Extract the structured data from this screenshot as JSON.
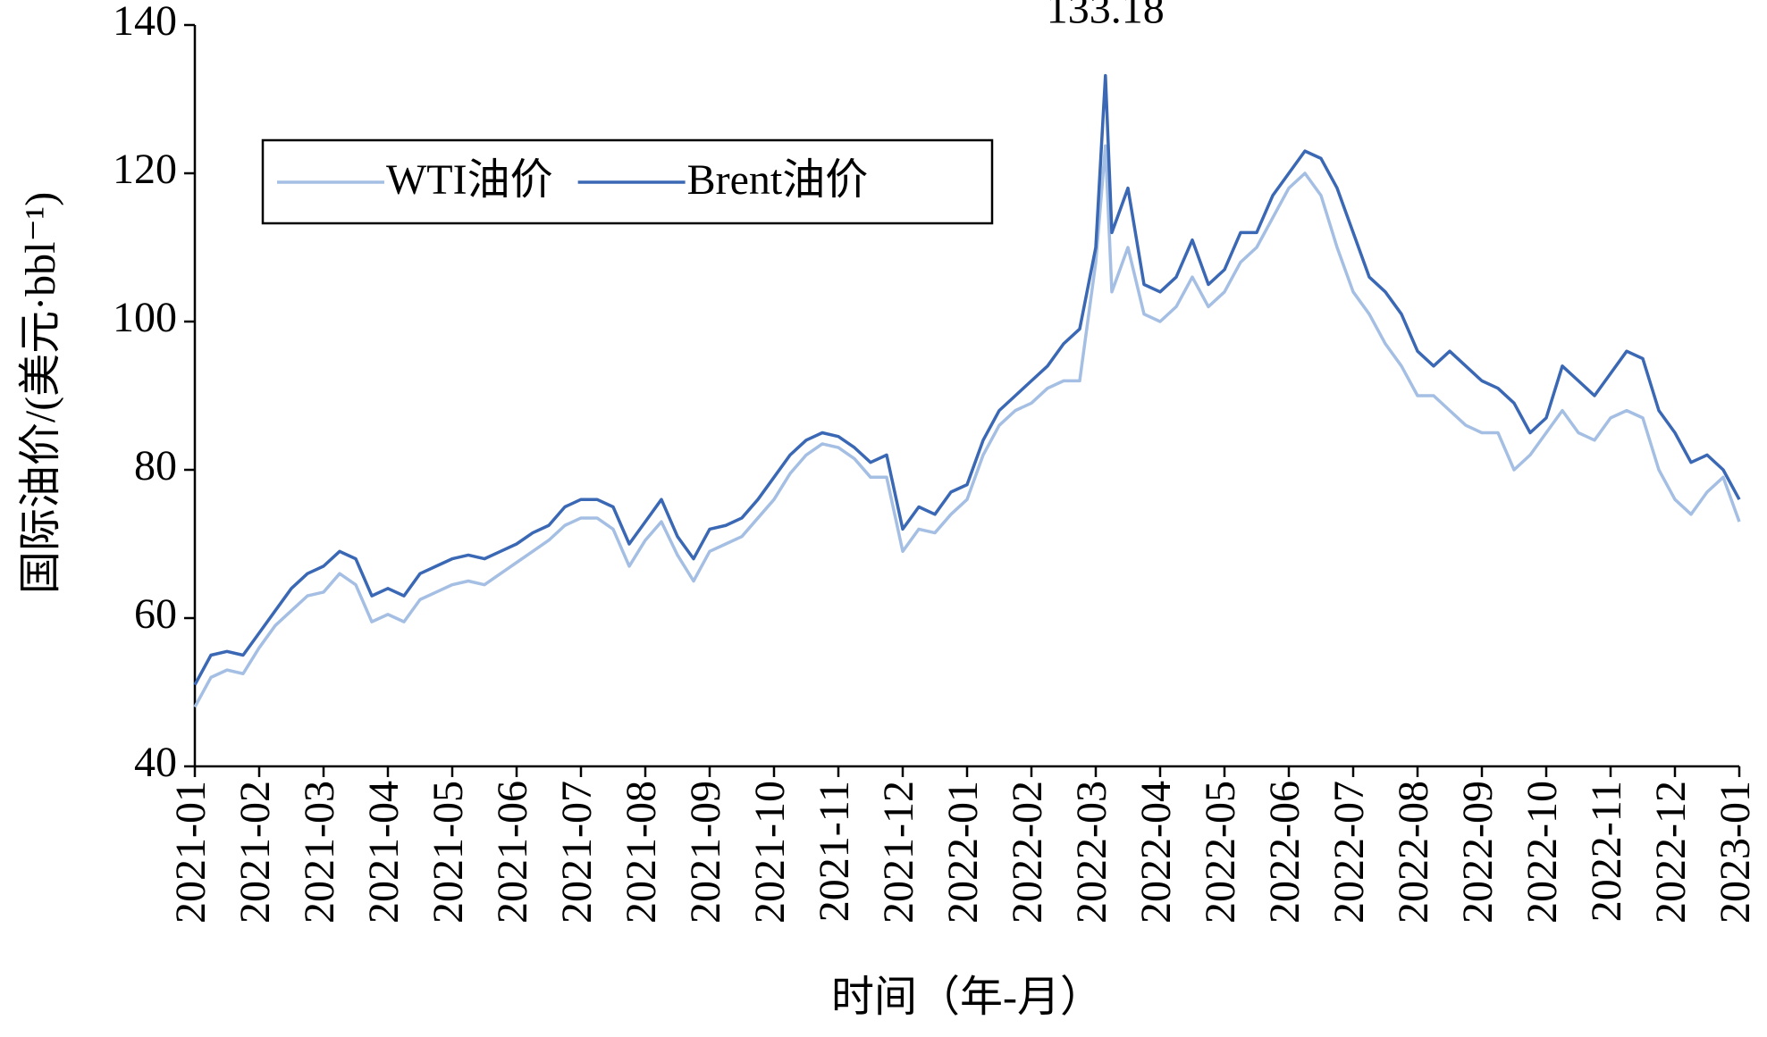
{
  "chart_data": {
    "type": "line",
    "y_label": "国际油价/(美元·bbl⁻¹)",
    "x_label": "时间（年-月）",
    "x": [
      0,
      0.25,
      0.5,
      0.75,
      1,
      1.25,
      1.5,
      1.75,
      2,
      2.25,
      2.5,
      2.75,
      3,
      3.25,
      3.5,
      3.75,
      4,
      4.25,
      4.5,
      4.75,
      5,
      5.25,
      5.5,
      5.75,
      6,
      6.25,
      6.5,
      6.75,
      7,
      7.25,
      7.5,
      7.75,
      8,
      8.25,
      8.5,
      8.75,
      9,
      9.25,
      9.5,
      9.75,
      10,
      10.25,
      10.5,
      10.75,
      11,
      11.25,
      11.5,
      11.75,
      12,
      12.25,
      12.5,
      12.75,
      13,
      13.25,
      13.5,
      13.75,
      14,
      14.15,
      14.25,
      14.5,
      14.75,
      15,
      15.25,
      15.5,
      15.75,
      16,
      16.25,
      16.5,
      16.75,
      17,
      17.25,
      17.5,
      17.75,
      18,
      18.25,
      18.5,
      18.75,
      19,
      19.25,
      19.5,
      19.75,
      20,
      20.25,
      20.5,
      20.75,
      21,
      21.25,
      21.5,
      21.75,
      22,
      22.25,
      22.5,
      22.75,
      23,
      23.25,
      23.5,
      23.75,
      24
    ],
    "series": [
      {
        "name": "WTI油价",
        "color": "#a4bfe3",
        "values": [
          48,
          52,
          53,
          52.5,
          56,
          59,
          61,
          63,
          63.5,
          66,
          64.5,
          59.5,
          60.5,
          59.5,
          62.5,
          63.5,
          64.5,
          65,
          64.5,
          66,
          67.5,
          69,
          70.5,
          72.5,
          73.5,
          73.5,
          72,
          67,
          70.5,
          73,
          68.5,
          65,
          69,
          70,
          71,
          73.5,
          76,
          79.5,
          82,
          83.5,
          83,
          81.5,
          79,
          79,
          69,
          72,
          71.5,
          74,
          76,
          82,
          86,
          88,
          89,
          91,
          92,
          92,
          108,
          123.7,
          104,
          110,
          101,
          100,
          102,
          106,
          102,
          104,
          108,
          110,
          114,
          118,
          120,
          117,
          110,
          104,
          101,
          97,
          94,
          90,
          90,
          88,
          86,
          85,
          85,
          80,
          82,
          85,
          88,
          85,
          84,
          87,
          88,
          87,
          80,
          76,
          74,
          77,
          79,
          73
        ]
      },
      {
        "name": "Brent油价",
        "color": "#3a68b4",
        "values": [
          51,
          55,
          55.5,
          55,
          58,
          61,
          64,
          66,
          67,
          69,
          68,
          63,
          64,
          63,
          66,
          67,
          68,
          68.5,
          68,
          69,
          70,
          71.5,
          72.5,
          75,
          76,
          76,
          75,
          70,
          73,
          76,
          71,
          68,
          72,
          72.5,
          73.5,
          76,
          79,
          82,
          84,
          85,
          84.5,
          83,
          81,
          82,
          72,
          75,
          74,
          77,
          78,
          84,
          88,
          90,
          92,
          94,
          97,
          99,
          110,
          133.18,
          112,
          118,
          105,
          104,
          106,
          111,
          105,
          107,
          112,
          112,
          117,
          120,
          123,
          122,
          118,
          112,
          106,
          104,
          101,
          96,
          94,
          96,
          94,
          92,
          91,
          89,
          85,
          87,
          94,
          92,
          90,
          93,
          96,
          95,
          88,
          85,
          81,
          82,
          80,
          76
        ]
      }
    ],
    "annotations": [
      {
        "x": 14.15,
        "y": 133.18,
        "label": "133.18"
      }
    ],
    "xlim": [
      0,
      24
    ],
    "xticks": [
      {
        "value": 0,
        "label": "2021-01"
      },
      {
        "value": 1,
        "label": "2021-02"
      },
      {
        "value": 2,
        "label": "2021-03"
      },
      {
        "value": 3,
        "label": "2021-04"
      },
      {
        "value": 4,
        "label": "2021-05"
      },
      {
        "value": 5,
        "label": "2021-06"
      },
      {
        "value": 6,
        "label": "2021-07"
      },
      {
        "value": 7,
        "label": "2021-08"
      },
      {
        "value": 8,
        "label": "2021-09"
      },
      {
        "value": 9,
        "label": "2021-10"
      },
      {
        "value": 10,
        "label": "2021-11"
      },
      {
        "value": 11,
        "label": "2021-12"
      },
      {
        "value": 12,
        "label": "2022-01"
      },
      {
        "value": 13,
        "label": "2022-02"
      },
      {
        "value": 14,
        "label": "2022-03"
      },
      {
        "value": 15,
        "label": "2022-04"
      },
      {
        "value": 16,
        "label": "2022-05"
      },
      {
        "value": 17,
        "label": "2022-06"
      },
      {
        "value": 18,
        "label": "2022-07"
      },
      {
        "value": 19,
        "label": "2022-08"
      },
      {
        "value": 20,
        "label": "2022-09"
      },
      {
        "value": 21,
        "label": "2022-10"
      },
      {
        "value": 22,
        "label": "2022-11"
      },
      {
        "value": 23,
        "label": "2022-12"
      },
      {
        "value": 24,
        "label": "2023-01"
      }
    ],
    "ylim": [
      40,
      140
    ],
    "yticks": [
      40,
      60,
      80,
      100,
      120,
      140
    ],
    "grid": false
  }
}
